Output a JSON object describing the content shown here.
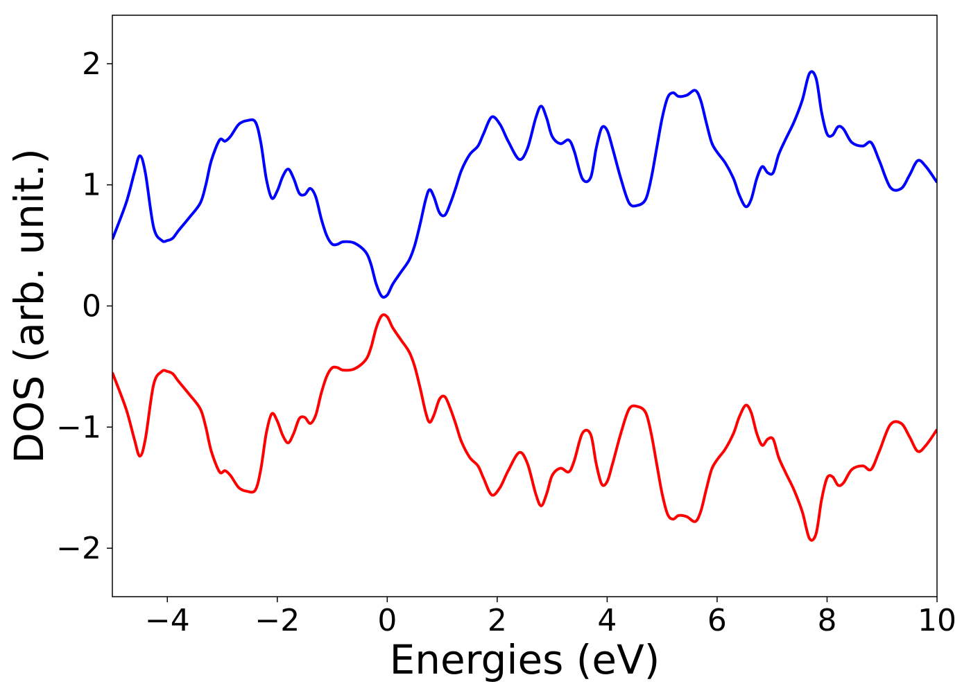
{
  "chart_data": {
    "type": "line",
    "title": "",
    "xlabel": "Energies (eV)",
    "ylabel": "DOS (arb. unit.)",
    "xlim": [
      -5,
      10
    ],
    "ylim": [
      -2.4,
      2.4
    ],
    "xticks": [
      -4,
      -2,
      0,
      2,
      4,
      6,
      8,
      10
    ],
    "xtick_labels": [
      "−4",
      "−2",
      "0",
      "2",
      "4",
      "6",
      "8",
      "10"
    ],
    "yticks": [
      -2,
      -1,
      0,
      1,
      2
    ],
    "ytick_labels": [
      "−2",
      "−1",
      "0",
      "1",
      "2"
    ],
    "grid": false,
    "legend": "none",
    "colors": {
      "spin_up": "#0000ff",
      "spin_down": "#ff0000"
    },
    "series": [
      {
        "color": "#0000ff",
        "x": [
          -5.0,
          -4.75,
          -4.6,
          -4.5,
          -4.4,
          -4.25,
          -4.1,
          -4.0,
          -3.9,
          -3.8,
          -3.6,
          -3.4,
          -3.3,
          -3.2,
          -3.05,
          -2.95,
          -2.85,
          -2.7,
          -2.55,
          -2.4,
          -2.3,
          -2.2,
          -2.1,
          -2.0,
          -1.9,
          -1.8,
          -1.7,
          -1.6,
          -1.5,
          -1.4,
          -1.3,
          -1.2,
          -1.1,
          -1.0,
          -0.9,
          -0.8,
          -0.6,
          -0.4,
          -0.3,
          -0.2,
          -0.1,
          0.0,
          0.1,
          0.25,
          0.4,
          0.5,
          0.6,
          0.7,
          0.77,
          0.85,
          0.95,
          1.05,
          1.15,
          1.25,
          1.35,
          1.5,
          1.65,
          1.75,
          1.9,
          2.05,
          2.2,
          2.4,
          2.55,
          2.7,
          2.8,
          2.9,
          3.0,
          3.15,
          3.3,
          3.4,
          3.55,
          3.7,
          3.8,
          3.9,
          4.0,
          4.1,
          4.25,
          4.4,
          4.55,
          4.7,
          4.8,
          4.9,
          5.0,
          5.1,
          5.2,
          5.3,
          5.45,
          5.6,
          5.7,
          5.8,
          5.9,
          6.0,
          6.15,
          6.3,
          6.4,
          6.52,
          6.62,
          6.72,
          6.82,
          6.92,
          7.02,
          7.12,
          7.25,
          7.4,
          7.55,
          7.68,
          7.8,
          7.9,
          8.0,
          8.1,
          8.2,
          8.3,
          8.45,
          8.65,
          8.8,
          8.95,
          9.15,
          9.35,
          9.5,
          9.65,
          9.8,
          10.0
        ],
        "values": [
          0.55,
          0.85,
          1.1,
          1.24,
          1.1,
          0.65,
          0.54,
          0.54,
          0.56,
          0.62,
          0.73,
          0.85,
          1.0,
          1.2,
          1.37,
          1.36,
          1.4,
          1.5,
          1.53,
          1.52,
          1.35,
          1.05,
          0.89,
          0.95,
          1.07,
          1.13,
          1.05,
          0.93,
          0.92,
          0.97,
          0.9,
          0.72,
          0.58,
          0.51,
          0.51,
          0.53,
          0.52,
          0.45,
          0.35,
          0.18,
          0.08,
          0.09,
          0.18,
          0.28,
          0.38,
          0.5,
          0.68,
          0.88,
          0.96,
          0.9,
          0.77,
          0.75,
          0.85,
          0.98,
          1.12,
          1.25,
          1.32,
          1.42,
          1.56,
          1.5,
          1.36,
          1.21,
          1.3,
          1.55,
          1.65,
          1.55,
          1.4,
          1.34,
          1.37,
          1.28,
          1.05,
          1.06,
          1.3,
          1.47,
          1.45,
          1.3,
          1.05,
          0.85,
          0.83,
          0.88,
          1.05,
          1.3,
          1.55,
          1.72,
          1.76,
          1.73,
          1.74,
          1.78,
          1.7,
          1.52,
          1.35,
          1.27,
          1.18,
          1.05,
          0.92,
          0.82,
          0.88,
          1.05,
          1.15,
          1.1,
          1.1,
          1.25,
          1.38,
          1.52,
          1.7,
          1.92,
          1.88,
          1.6,
          1.42,
          1.41,
          1.48,
          1.46,
          1.35,
          1.32,
          1.35,
          1.2,
          0.98,
          0.97,
          1.08,
          1.2,
          1.15,
          1.02
        ]
      },
      {
        "color": "#ff0000",
        "x": [
          -5.0,
          -4.75,
          -4.6,
          -4.5,
          -4.4,
          -4.25,
          -4.1,
          -4.0,
          -3.9,
          -3.8,
          -3.6,
          -3.4,
          -3.3,
          -3.2,
          -3.05,
          -2.95,
          -2.85,
          -2.7,
          -2.55,
          -2.4,
          -2.3,
          -2.2,
          -2.1,
          -2.0,
          -1.9,
          -1.8,
          -1.7,
          -1.6,
          -1.5,
          -1.4,
          -1.3,
          -1.2,
          -1.1,
          -1.0,
          -0.9,
          -0.8,
          -0.6,
          -0.4,
          -0.3,
          -0.2,
          -0.1,
          0.0,
          0.1,
          0.25,
          0.4,
          0.5,
          0.6,
          0.7,
          0.77,
          0.85,
          0.95,
          1.05,
          1.15,
          1.25,
          1.35,
          1.5,
          1.65,
          1.75,
          1.9,
          2.05,
          2.2,
          2.4,
          2.55,
          2.7,
          2.8,
          2.9,
          3.0,
          3.15,
          3.3,
          3.4,
          3.55,
          3.7,
          3.8,
          3.9,
          4.0,
          4.1,
          4.25,
          4.4,
          4.55,
          4.7,
          4.8,
          4.9,
          5.0,
          5.1,
          5.2,
          5.3,
          5.45,
          5.6,
          5.7,
          5.8,
          5.9,
          6.0,
          6.15,
          6.3,
          6.4,
          6.52,
          6.62,
          6.72,
          6.82,
          6.92,
          7.02,
          7.12,
          7.25,
          7.4,
          7.55,
          7.68,
          7.8,
          7.9,
          8.0,
          8.1,
          8.2,
          8.3,
          8.45,
          8.65,
          8.8,
          8.95,
          9.15,
          9.35,
          9.5,
          9.65,
          9.8,
          10.0
        ],
        "values": [
          -0.55,
          -0.85,
          -1.1,
          -1.24,
          -1.1,
          -0.65,
          -0.54,
          -0.54,
          -0.56,
          -0.62,
          -0.73,
          -0.85,
          -1.0,
          -1.2,
          -1.37,
          -1.36,
          -1.4,
          -1.5,
          -1.53,
          -1.52,
          -1.35,
          -1.05,
          -0.89,
          -0.95,
          -1.07,
          -1.13,
          -1.05,
          -0.93,
          -0.92,
          -0.97,
          -0.9,
          -0.72,
          -0.58,
          -0.51,
          -0.51,
          -0.53,
          -0.52,
          -0.45,
          -0.35,
          -0.18,
          -0.08,
          -0.09,
          -0.18,
          -0.28,
          -0.38,
          -0.5,
          -0.68,
          -0.88,
          -0.96,
          -0.9,
          -0.77,
          -0.75,
          -0.85,
          -0.98,
          -1.12,
          -1.25,
          -1.32,
          -1.42,
          -1.56,
          -1.5,
          -1.36,
          -1.21,
          -1.3,
          -1.55,
          -1.65,
          -1.55,
          -1.4,
          -1.34,
          -1.37,
          -1.28,
          -1.05,
          -1.06,
          -1.3,
          -1.47,
          -1.45,
          -1.3,
          -1.05,
          -0.85,
          -0.83,
          -0.88,
          -1.05,
          -1.3,
          -1.55,
          -1.72,
          -1.76,
          -1.73,
          -1.74,
          -1.78,
          -1.7,
          -1.52,
          -1.35,
          -1.27,
          -1.18,
          -1.05,
          -0.92,
          -0.82,
          -0.88,
          -1.05,
          -1.15,
          -1.1,
          -1.1,
          -1.25,
          -1.38,
          -1.52,
          -1.7,
          -1.92,
          -1.88,
          -1.6,
          -1.42,
          -1.41,
          -1.48,
          -1.46,
          -1.35,
          -1.32,
          -1.35,
          -1.2,
          -0.98,
          -0.97,
          -1.08,
          -1.2,
          -1.15,
          -1.02
        ]
      }
    ]
  }
}
